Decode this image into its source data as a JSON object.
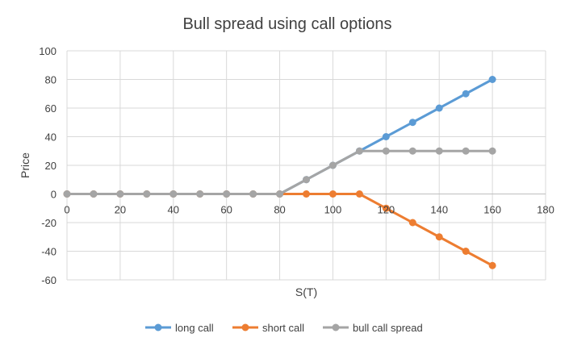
{
  "chart_data": {
    "type": "line",
    "title": "Bull spread using call options",
    "xlabel": "S(T)",
    "ylabel": "Price",
    "xlim": [
      0,
      180
    ],
    "ylim": [
      -60,
      100
    ],
    "x_ticks": [
      0,
      20,
      40,
      60,
      80,
      100,
      120,
      140,
      160,
      180
    ],
    "y_ticks": [
      100,
      80,
      60,
      40,
      20,
      0,
      -20,
      -40,
      -60
    ],
    "x_tick_labels": [
      "0",
      "20",
      "40",
      "60",
      "80",
      "100",
      "120",
      "140",
      "160",
      "180"
    ],
    "y_tick_labels": [
      "100",
      "80",
      "60",
      "40",
      "20",
      "0",
      "-20",
      "-40",
      "-60"
    ],
    "grid": true,
    "legend_position": "bottom",
    "x": [
      0,
      10,
      20,
      30,
      40,
      50,
      60,
      70,
      80,
      90,
      100,
      110,
      120,
      130,
      140,
      150,
      160
    ],
    "series": [
      {
        "name": "long call",
        "color": "#5B9BD5",
        "values": [
          0,
          0,
          0,
          0,
          0,
          0,
          0,
          0,
          0,
          10,
          20,
          30,
          40,
          50,
          60,
          70,
          80
        ]
      },
      {
        "name": "short call",
        "color": "#ED7D31",
        "values": [
          0,
          0,
          0,
          0,
          0,
          0,
          0,
          0,
          0,
          0,
          0,
          0,
          -10,
          -20,
          -30,
          -40,
          -50
        ]
      },
      {
        "name": "bull call spread",
        "color": "#A5A5A5",
        "values": [
          0,
          0,
          0,
          0,
          0,
          0,
          0,
          0,
          0,
          10,
          20,
          30,
          30,
          30,
          30,
          30,
          30
        ]
      }
    ]
  }
}
